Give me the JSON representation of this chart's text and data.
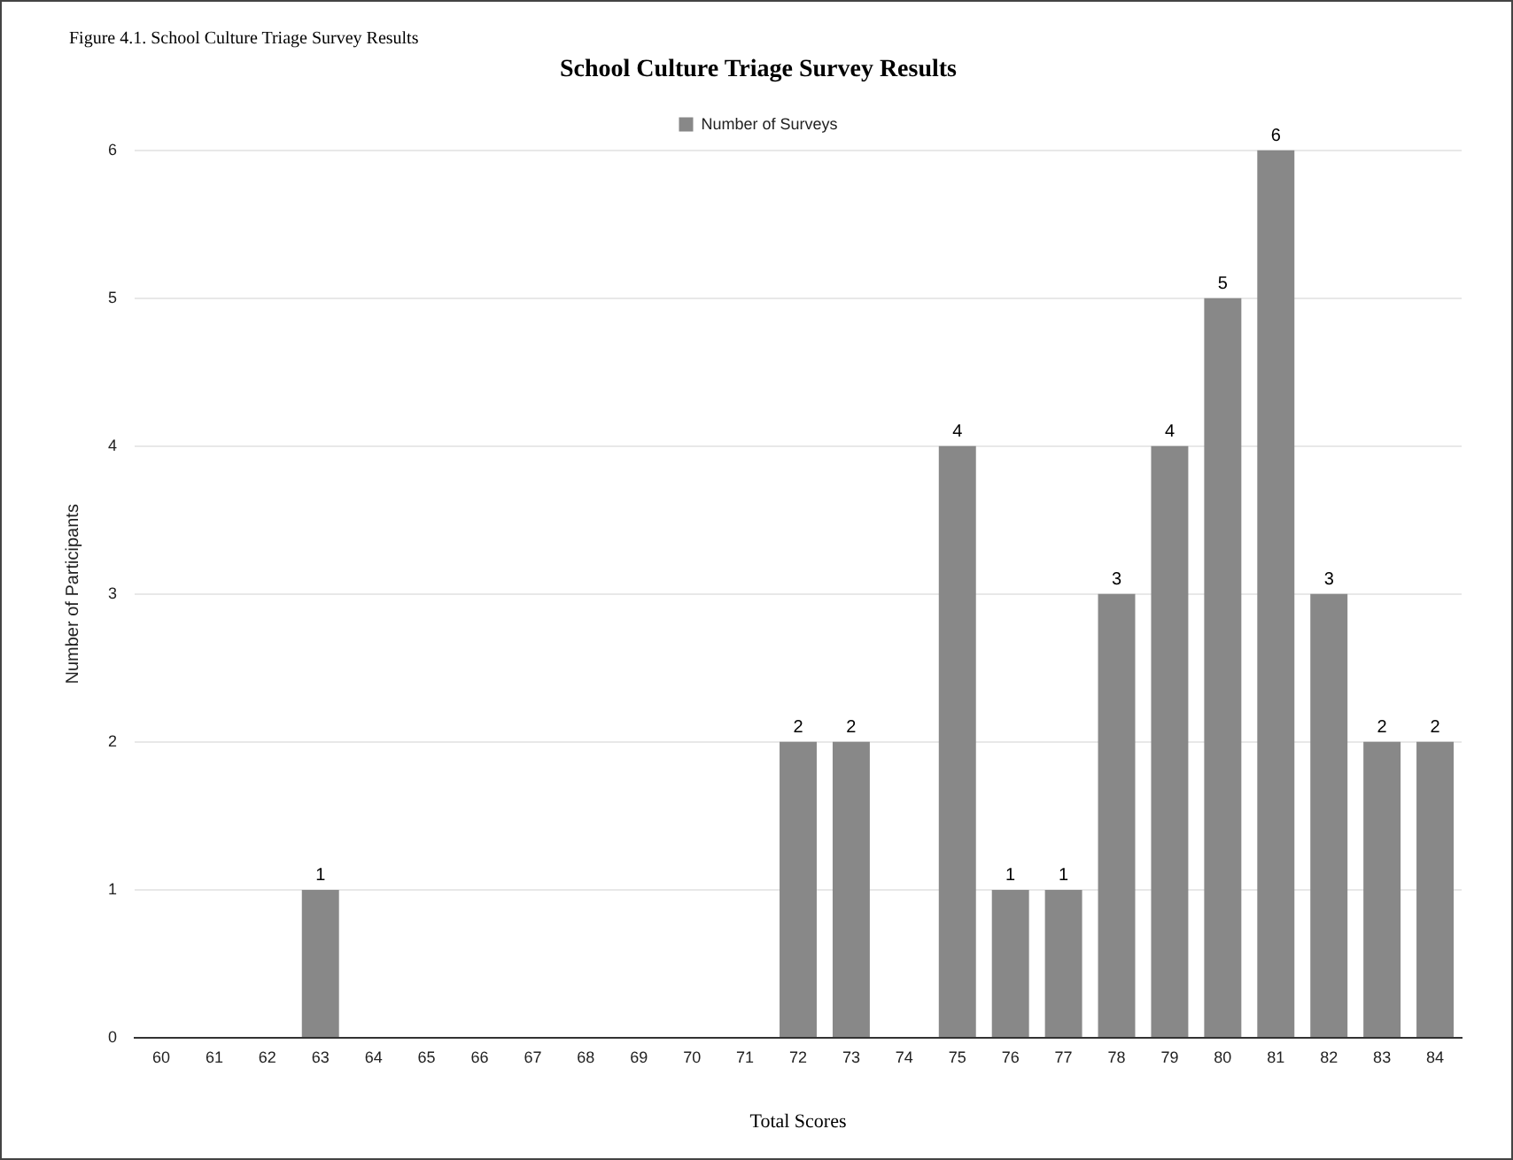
{
  "chart_data": {
    "type": "bar",
    "title": "School Culture Triage Survey Results",
    "xlabel": "Total Scores",
    "ylabel": "Number of Participants",
    "annotations": [
      "Figure 4.1. School Culture Triage Survey Results"
    ],
    "categories": [
      "60",
      "61",
      "62",
      "63",
      "64",
      "65",
      "66",
      "67",
      "68",
      "69",
      "70",
      "71",
      "72",
      "73",
      "74",
      "75",
      "76",
      "77",
      "78",
      "79",
      "80",
      "81",
      "82",
      "83",
      "84"
    ],
    "series": [
      {
        "name": "Number of Surveys",
        "color": "#888888",
        "values": [
          0,
          0,
          0,
          1,
          0,
          0,
          0,
          0,
          0,
          0,
          0,
          0,
          2,
          2,
          0,
          4,
          1,
          1,
          3,
          4,
          5,
          6,
          3,
          2,
          2
        ],
        "value_labels": [
          null,
          null,
          null,
          "1",
          null,
          null,
          null,
          null,
          null,
          null,
          null,
          null,
          "2",
          "2",
          null,
          "4",
          "1",
          "1",
          "3",
          "4",
          "5",
          "6",
          "3",
          "2",
          "2"
        ]
      }
    ],
    "ylim": [
      0,
      6
    ],
    "yticks": [
      0,
      1,
      2,
      3,
      4,
      5,
      6
    ],
    "grid": "y",
    "legend": "top"
  }
}
